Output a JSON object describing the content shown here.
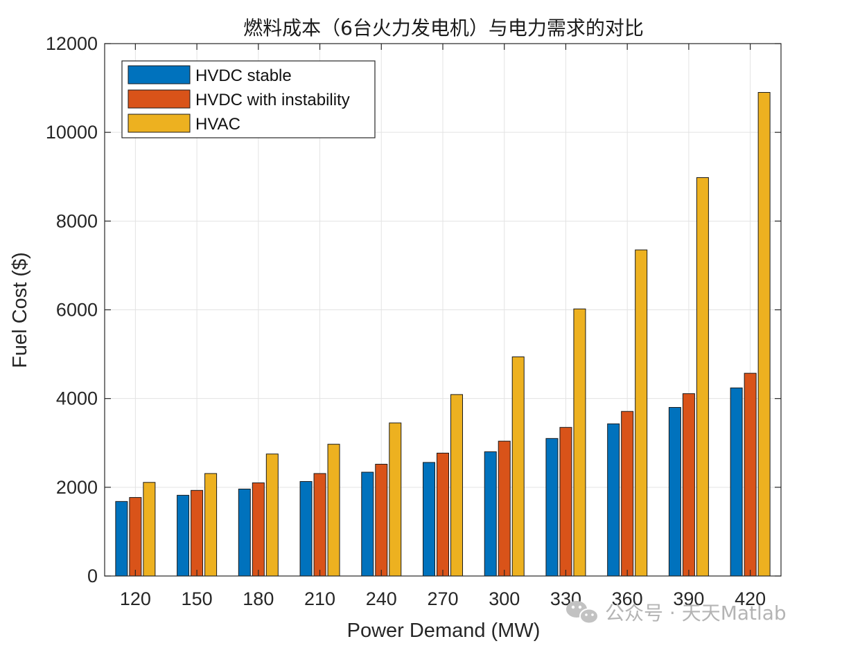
{
  "chart_data": {
    "type": "bar",
    "title": "燃料成本（6台火力发电机）与电力需求的对比",
    "xlabel": "Power Demand (MW)",
    "ylabel": "Fuel Cost ($)",
    "categories": [
      "120",
      "150",
      "180",
      "210",
      "240",
      "270",
      "300",
      "330",
      "360",
      "390",
      "420"
    ],
    "series": [
      {
        "name": "HVDC stable",
        "color": "#0072BD",
        "values": [
          1680,
          1820,
          1960,
          2130,
          2340,
          2560,
          2800,
          3100,
          3430,
          3800,
          4240
        ]
      },
      {
        "name": "HVDC with instability",
        "color": "#D95319",
        "values": [
          1770,
          1930,
          2100,
          2310,
          2520,
          2770,
          3040,
          3350,
          3710,
          4110,
          4570
        ]
      },
      {
        "name": "HVAC",
        "color": "#EDB120",
        "values": [
          2110,
          2310,
          2750,
          2970,
          3450,
          4090,
          4940,
          6020,
          7350,
          8980,
          10900
        ]
      }
    ],
    "ylim": [
      0,
      12000
    ],
    "yticks": [
      0,
      2000,
      4000,
      6000,
      8000,
      10000,
      12000
    ],
    "grid": true,
    "legend_location": "top-left"
  },
  "watermark": {
    "text": "公众号 · 天天Matlab",
    "icon": "wechat-icon"
  }
}
